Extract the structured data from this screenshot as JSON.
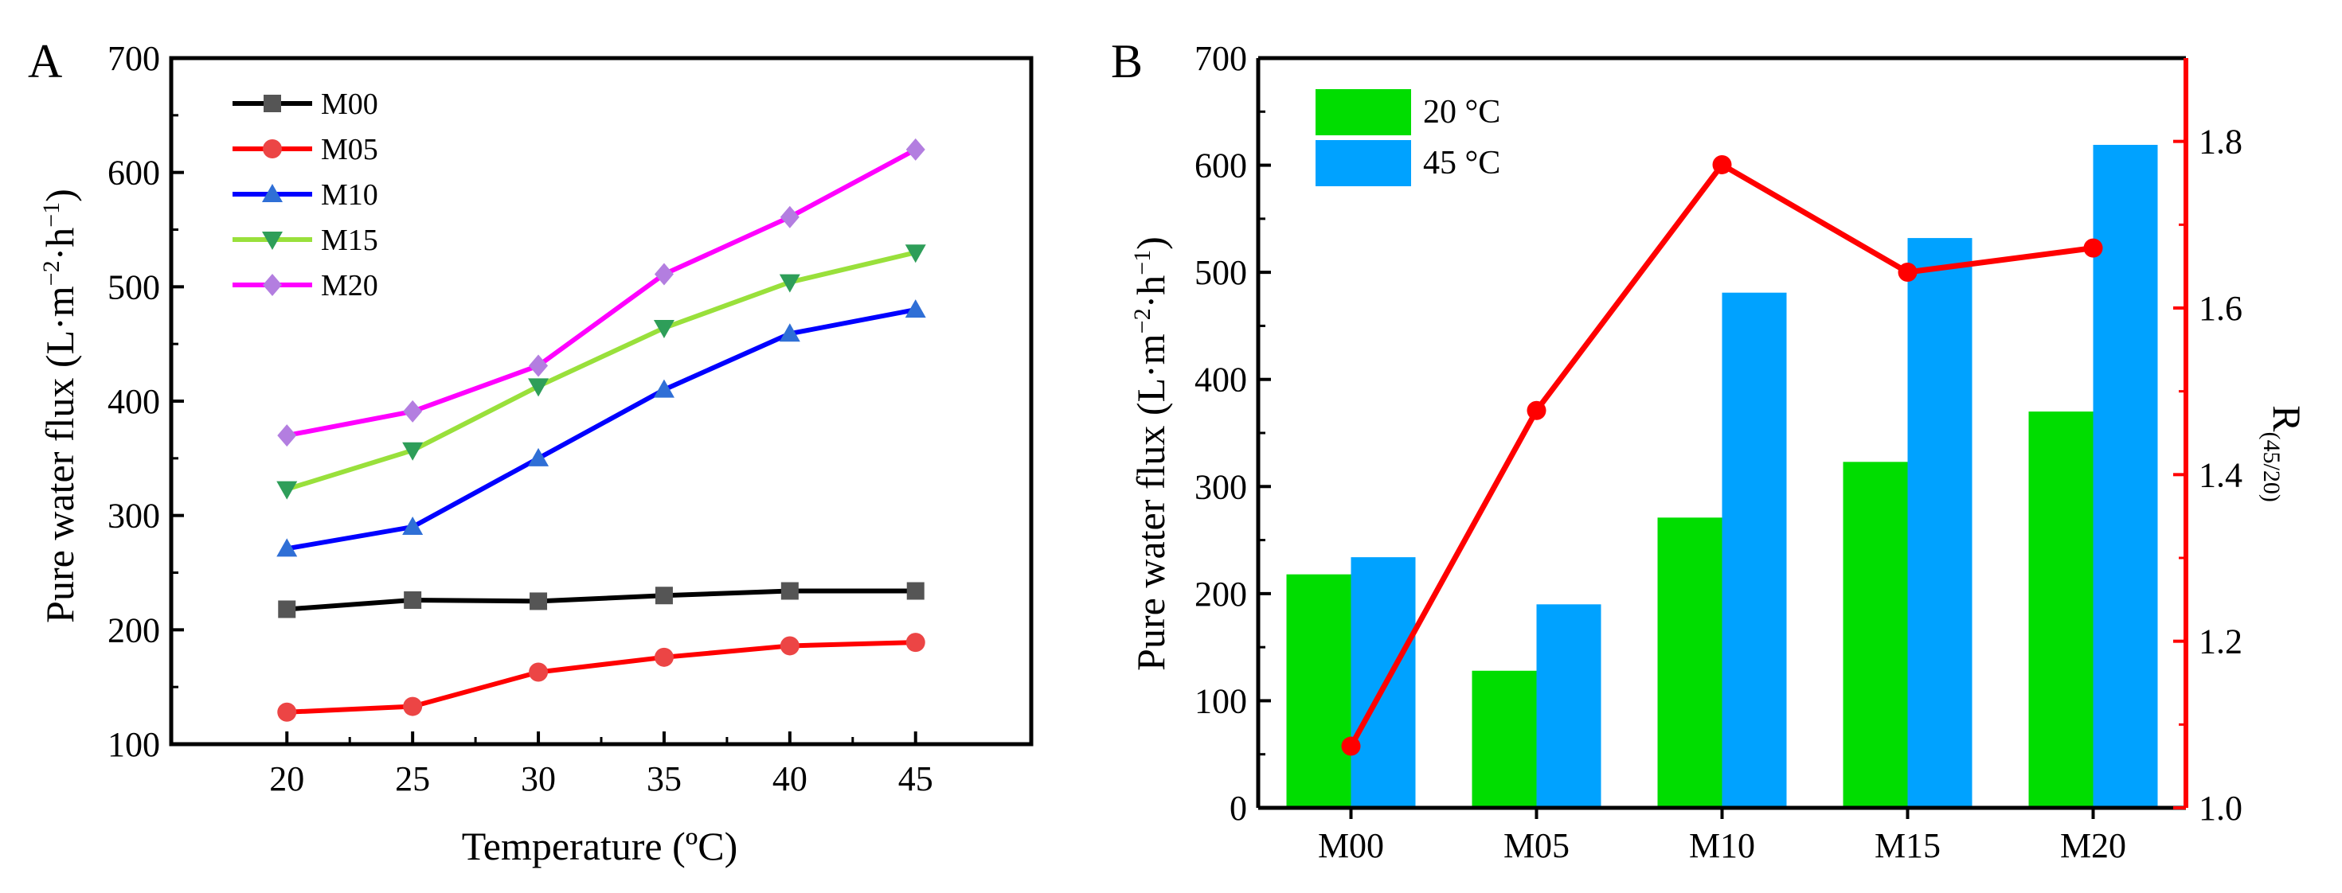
{
  "chart_data": [
    {
      "panel": "A",
      "type": "line",
      "xlabel": "Temperature (ºC)",
      "ylabel": {
        "main": "Pure water flux (L·m",
        "exp1": "−2",
        "mid": "·h",
        "exp2": "−1",
        "end": ")"
      },
      "x": [
        20,
        25,
        30,
        35,
        40,
        45
      ],
      "x_ticks": [
        "20",
        "25",
        "30",
        "35",
        "40",
        "45"
      ],
      "xlim": [
        15.4,
        49.6
      ],
      "ylim": [
        100,
        700
      ],
      "y_ticks": [
        "100",
        "200",
        "300",
        "400",
        "500",
        "600",
        "700"
      ],
      "legend_position": "top-left",
      "series": [
        {
          "name": "M00",
          "color": "#000000",
          "marker_color": "#555555",
          "marker": "square",
          "values": [
            218,
            226,
            225,
            230,
            234,
            234
          ]
        },
        {
          "name": "M05",
          "color": "#ff0000",
          "marker_color": "#ec4545",
          "marker": "circle",
          "values": [
            128,
            133,
            163,
            176,
            186,
            189
          ]
        },
        {
          "name": "M10",
          "color": "#0000ff",
          "marker_color": "#2f6fd6",
          "marker": "triangle-up",
          "values": [
            271,
            290,
            350,
            410,
            459,
            480
          ]
        },
        {
          "name": "M15",
          "color": "#99e03b",
          "marker_color": "#2e9e59",
          "marker": "triangle-down",
          "values": [
            323,
            357,
            413,
            464,
            504,
            530
          ]
        },
        {
          "name": "M20",
          "color": "#ff00ff",
          "marker_color": "#b37ee0",
          "marker": "diamond",
          "values": [
            370,
            391,
            431,
            511,
            561,
            620
          ]
        }
      ]
    },
    {
      "panel": "B",
      "type": "bar",
      "categories": [
        "M00",
        "M05",
        "M10",
        "M15",
        "M20"
      ],
      "ylabel_left": {
        "main": "Pure water flux (L·m",
        "exp1": "−2",
        "mid": "·h",
        "exp2": "−1",
        "end": ")"
      },
      "ylabel_right": {
        "main": "R",
        "sub": "(45/20)"
      },
      "ylim": [
        0,
        700
      ],
      "y_ticks": [
        "0",
        "100",
        "200",
        "300",
        "400",
        "500",
        "600",
        "700"
      ],
      "y2lim": [
        1.0,
        1.9
      ],
      "y2_ticks": [
        "1.0",
        "1.2",
        "1.4",
        "1.6",
        "1.8"
      ],
      "legend_position": "top-left",
      "series": [
        {
          "name": "20 °C",
          "color": "#00dd00",
          "values": [
            218,
            128,
            271,
            323,
            370
          ]
        },
        {
          "name": "45 °C",
          "color": "#00a2ff",
          "values": [
            234,
            190,
            481,
            532,
            619
          ]
        }
      ],
      "ratio_series": {
        "name": "R(45/20)",
        "color": "#ff0000",
        "values": [
          1.074,
          1.477,
          1.772,
          1.643,
          1.672
        ]
      }
    }
  ]
}
